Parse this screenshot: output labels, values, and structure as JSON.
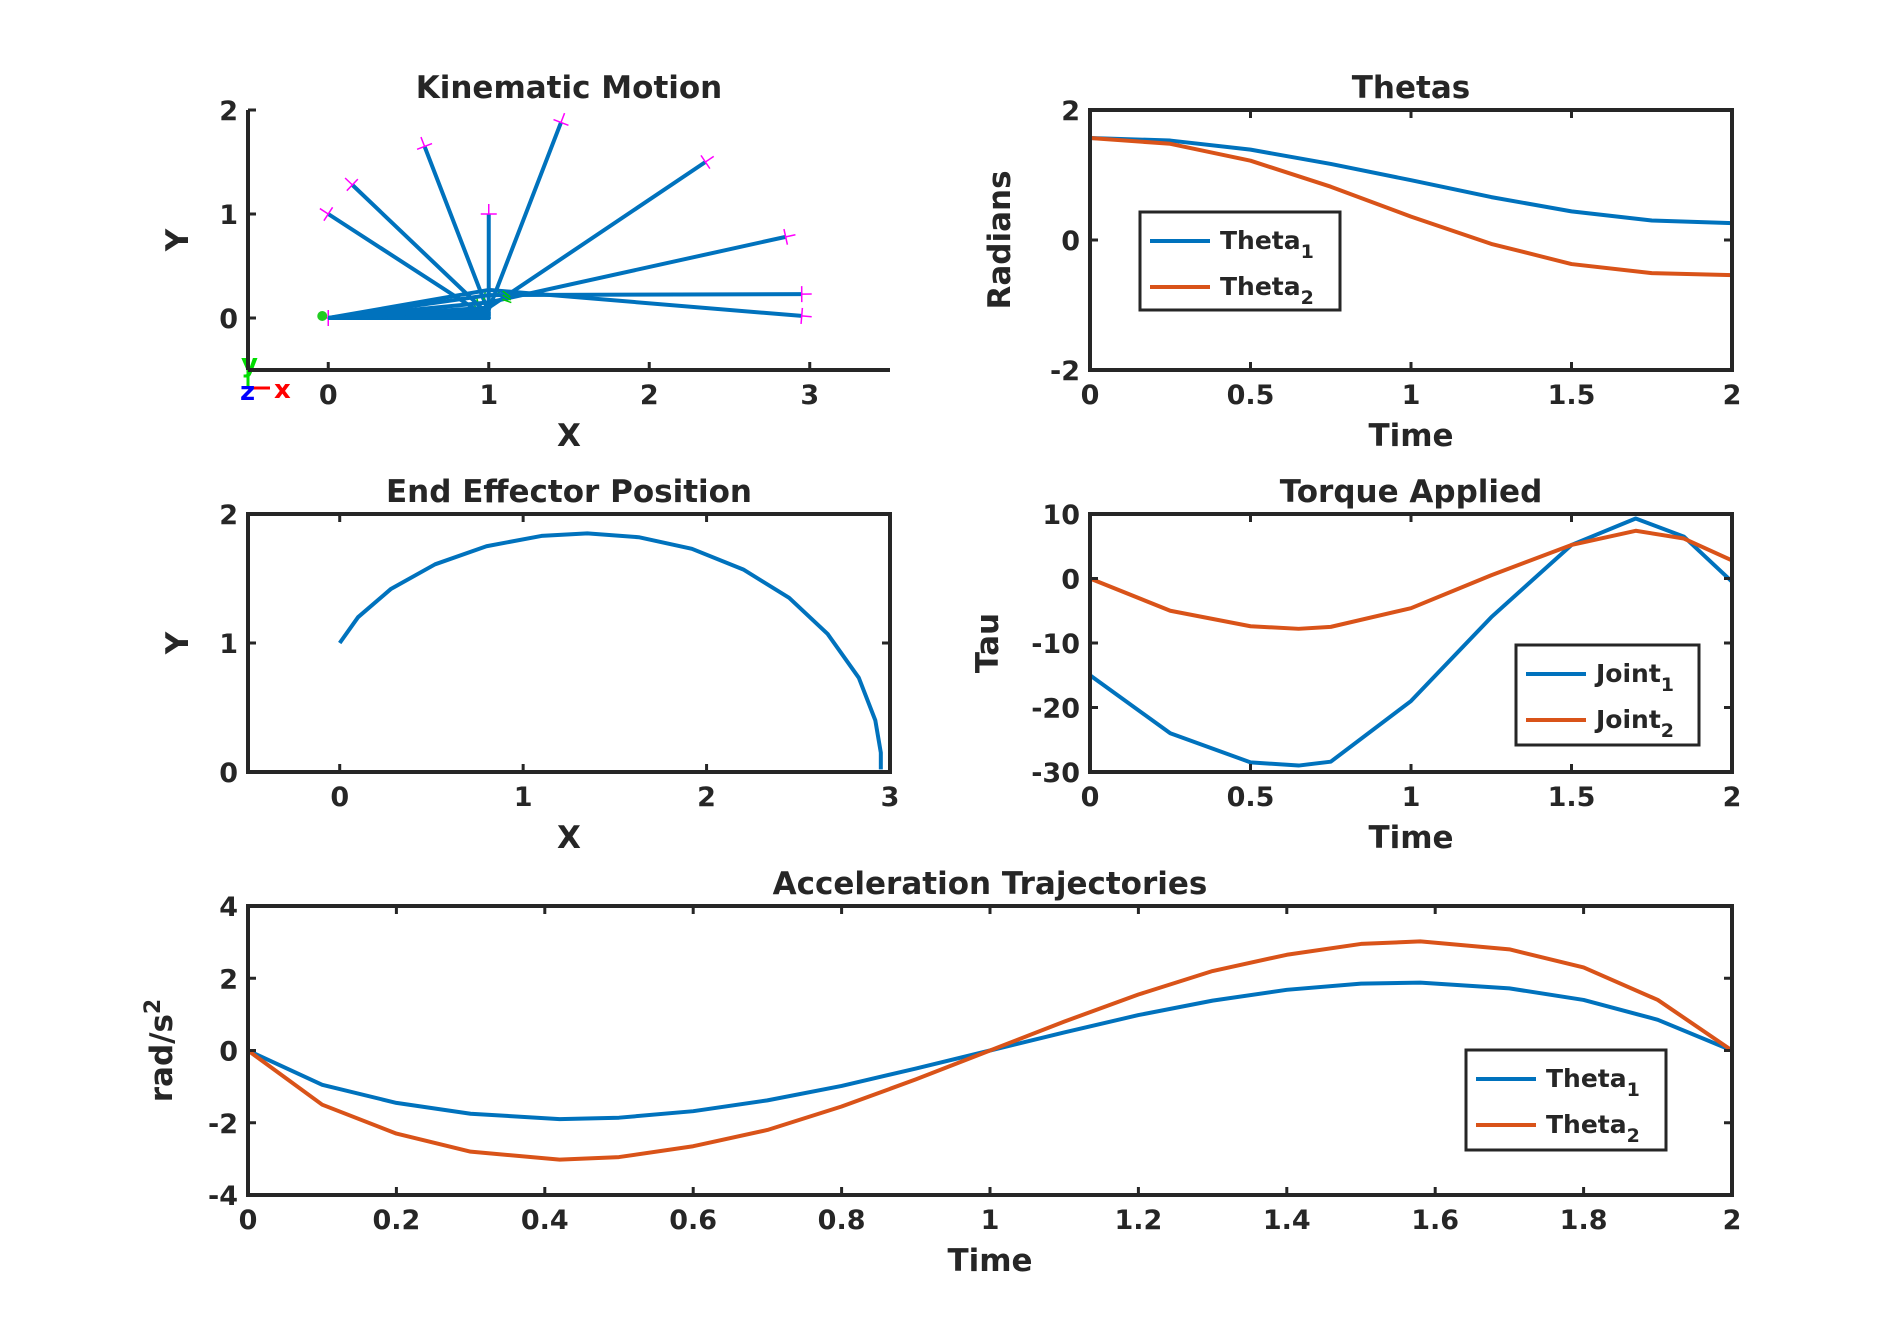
{
  "colors": {
    "series1": "#0072BD",
    "series2": "#D95319",
    "axis": "#262626"
  },
  "chart_data": [
    {
      "id": "kinematic",
      "type": "line",
      "title": "Kinematic Motion",
      "xlabel": "X",
      "ylabel": "Y",
      "xlim": [
        -0.5,
        3.5
      ],
      "ylim": [
        -0.5,
        2
      ],
      "xticks": [
        0,
        1,
        2,
        3
      ],
      "yticks": [
        0,
        1,
        2
      ],
      "box": false,
      "base_triad": {
        "x_label": "x",
        "y_label": "y",
        "z_label": "z"
      },
      "poses": [
        {
          "elbow": [
            1.0,
            0.0
          ],
          "end": [
            0.0,
            0.0
          ]
        },
        {
          "elbow": [
            1.0,
            0.0
          ],
          "end": [
            0.0,
            1.0
          ]
        },
        {
          "elbow": [
            1.0,
            0.0
          ],
          "end": [
            1.0,
            1.0
          ]
        },
        {
          "elbow": [
            1.0,
            0.03
          ],
          "end": [
            0.15,
            1.28
          ]
        },
        {
          "elbow": [
            1.0,
            0.05
          ],
          "end": [
            0.6,
            1.65
          ]
        },
        {
          "elbow": [
            1.0,
            0.08
          ],
          "end": [
            1.45,
            1.88
          ]
        },
        {
          "elbow": [
            1.0,
            0.1
          ],
          "end": [
            2.35,
            1.5
          ]
        },
        {
          "elbow": [
            1.0,
            0.15
          ],
          "end": [
            2.85,
            0.78
          ]
        },
        {
          "elbow": [
            1.0,
            0.22
          ],
          "end": [
            2.95,
            0.23
          ]
        },
        {
          "elbow": [
            1.0,
            0.27
          ],
          "end": [
            2.95,
            0.02
          ]
        }
      ]
    },
    {
      "id": "thetas",
      "type": "line",
      "title": "Thetas",
      "xlabel": "Time",
      "ylabel": "Radians",
      "xlim": [
        0,
        2
      ],
      "ylim": [
        -2,
        2
      ],
      "xticks": [
        0,
        0.5,
        1,
        1.5,
        2
      ],
      "yticks": [
        -2,
        0,
        2
      ],
      "box": true,
      "legend_position": "left",
      "x": [
        0,
        0.25,
        0.5,
        0.75,
        1.0,
        1.25,
        1.5,
        1.75,
        2.0
      ],
      "series": [
        {
          "name": "Theta",
          "sub": "1",
          "values": [
            1.57,
            1.53,
            1.39,
            1.17,
            0.92,
            0.66,
            0.44,
            0.3,
            0.26
          ]
        },
        {
          "name": "Theta",
          "sub": "2",
          "values": [
            1.57,
            1.48,
            1.22,
            0.82,
            0.36,
            -0.06,
            -0.37,
            -0.51,
            -0.54
          ]
        }
      ]
    },
    {
      "id": "endeffector",
      "type": "line",
      "title": "End Effector Position",
      "xlabel": "X",
      "ylabel": "Y",
      "xlim": [
        -0.5,
        3
      ],
      "ylim": [
        0,
        2
      ],
      "xticks": [
        0,
        1,
        2,
        3
      ],
      "yticks": [
        0,
        1,
        2
      ],
      "box": true,
      "series": [
        {
          "x": [
            0.0,
            0.1,
            0.28,
            0.52,
            0.8,
            1.1,
            1.35,
            1.63,
            1.92,
            2.2,
            2.45,
            2.66,
            2.83,
            2.92,
            2.95,
            2.95
          ],
          "y": [
            1.0,
            1.2,
            1.42,
            1.61,
            1.75,
            1.83,
            1.85,
            1.82,
            1.73,
            1.57,
            1.35,
            1.07,
            0.73,
            0.4,
            0.15,
            0.02
          ]
        }
      ]
    },
    {
      "id": "torque",
      "type": "line",
      "title": "Torque Applied",
      "xlabel": "Time",
      "ylabel": "Tau",
      "xlim": [
        0,
        2
      ],
      "ylim": [
        -30,
        10
      ],
      "xticks": [
        0,
        0.5,
        1,
        1.5,
        2
      ],
      "yticks": [
        -30,
        -20,
        -10,
        0,
        10
      ],
      "box": true,
      "legend_position": "bottom-right",
      "x": [
        0,
        0.25,
        0.5,
        0.65,
        0.75,
        1.0,
        1.25,
        1.5,
        1.7,
        1.85,
        2.0
      ],
      "series": [
        {
          "name": "Joint",
          "sub": "1",
          "values": [
            -15,
            -24,
            -28.5,
            -29,
            -28.4,
            -19,
            -6,
            5.2,
            9.3,
            6.5,
            -0.5
          ]
        },
        {
          "name": "Joint",
          "sub": "2",
          "values": [
            0,
            -5,
            -7.4,
            -7.8,
            -7.5,
            -4.6,
            0.5,
            5.2,
            7.4,
            6.2,
            2.8
          ]
        }
      ]
    },
    {
      "id": "accel",
      "type": "line",
      "title": "Acceleration Trajectories",
      "xlabel": "Time",
      "ylabel": "rad/s",
      "ylabel_sup": "2",
      "xlim": [
        0,
        2
      ],
      "ylim": [
        -4,
        4
      ],
      "xticks": [
        0,
        0.2,
        0.4,
        0.6,
        0.8,
        1,
        1.2,
        1.4,
        1.6,
        1.8,
        2
      ],
      "yticks": [
        -4,
        -2,
        0,
        2,
        4
      ],
      "box": true,
      "legend_position": "right",
      "x": [
        0,
        0.1,
        0.2,
        0.3,
        0.42,
        0.5,
        0.6,
        0.7,
        0.8,
        0.9,
        1.0,
        1.1,
        1.2,
        1.3,
        1.4,
        1.5,
        1.58,
        1.7,
        1.8,
        1.9,
        2.0
      ],
      "series": [
        {
          "name": "Theta",
          "sub": "1",
          "values": [
            0,
            -0.95,
            -1.45,
            -1.75,
            -1.9,
            -1.86,
            -1.68,
            -1.38,
            -0.98,
            -0.5,
            0,
            0.5,
            0.98,
            1.38,
            1.68,
            1.85,
            1.88,
            1.72,
            1.4,
            0.85,
            0
          ]
        },
        {
          "name": "Theta",
          "sub": "2",
          "values": [
            0,
            -1.5,
            -2.3,
            -2.8,
            -3.02,
            -2.95,
            -2.65,
            -2.2,
            -1.55,
            -0.8,
            0,
            0.8,
            1.55,
            2.2,
            2.65,
            2.95,
            3.02,
            2.8,
            2.3,
            1.4,
            0
          ]
        }
      ]
    }
  ]
}
